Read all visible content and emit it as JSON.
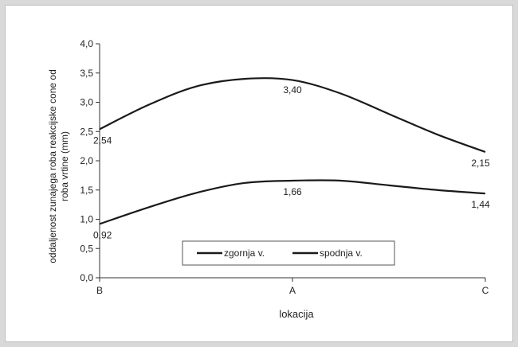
{
  "chart_data": {
    "type": "line",
    "categories": [
      "B",
      "A",
      "C"
    ],
    "x": [
      0,
      1,
      2
    ],
    "series": [
      {
        "name": "zgornja v.",
        "values": [
          2.54,
          3.4,
          2.15
        ],
        "labels": [
          "2,54",
          "3,40",
          "2,15"
        ],
        "curve": [
          [
            0,
            2.54
          ],
          [
            0.25,
            2.95
          ],
          [
            0.5,
            3.27
          ],
          [
            0.75,
            3.4
          ],
          [
            1.0,
            3.38
          ],
          [
            1.25,
            3.15
          ],
          [
            1.5,
            2.8
          ],
          [
            1.75,
            2.45
          ],
          [
            2.0,
            2.15
          ]
        ]
      },
      {
        "name": "spodnja v.",
        "values": [
          0.92,
          1.66,
          1.44
        ],
        "labels": [
          "0,92",
          "1,66",
          "1,44"
        ],
        "curve": [
          [
            0,
            0.92
          ],
          [
            0.25,
            1.2
          ],
          [
            0.5,
            1.45
          ],
          [
            0.75,
            1.62
          ],
          [
            1.0,
            1.66
          ],
          [
            1.25,
            1.66
          ],
          [
            1.5,
            1.58
          ],
          [
            1.75,
            1.5
          ],
          [
            2.0,
            1.44
          ]
        ]
      }
    ],
    "xlabel": "lokacija",
    "ylabel": "oddaljenost zunajega roba reakcijske cone od roba vrtine (mm)",
    "ylabel_lines": [
      "oddaljenost zunajega roba reakcijske cone od",
      "roba vrtine (mm)"
    ],
    "ylim": [
      0,
      4.0
    ],
    "yticks": [
      0,
      0.5,
      1.0,
      1.5,
      2.0,
      2.5,
      3.0,
      3.5,
      4.0
    ],
    "ytick_labels": [
      "0,0",
      "0,5",
      "1,0",
      "1,5",
      "2,0",
      "2,5",
      "3,0",
      "3,5",
      "4,0"
    ],
    "grid": false,
    "legend": "bottom-center",
    "line_color": "#1a1a1a"
  }
}
